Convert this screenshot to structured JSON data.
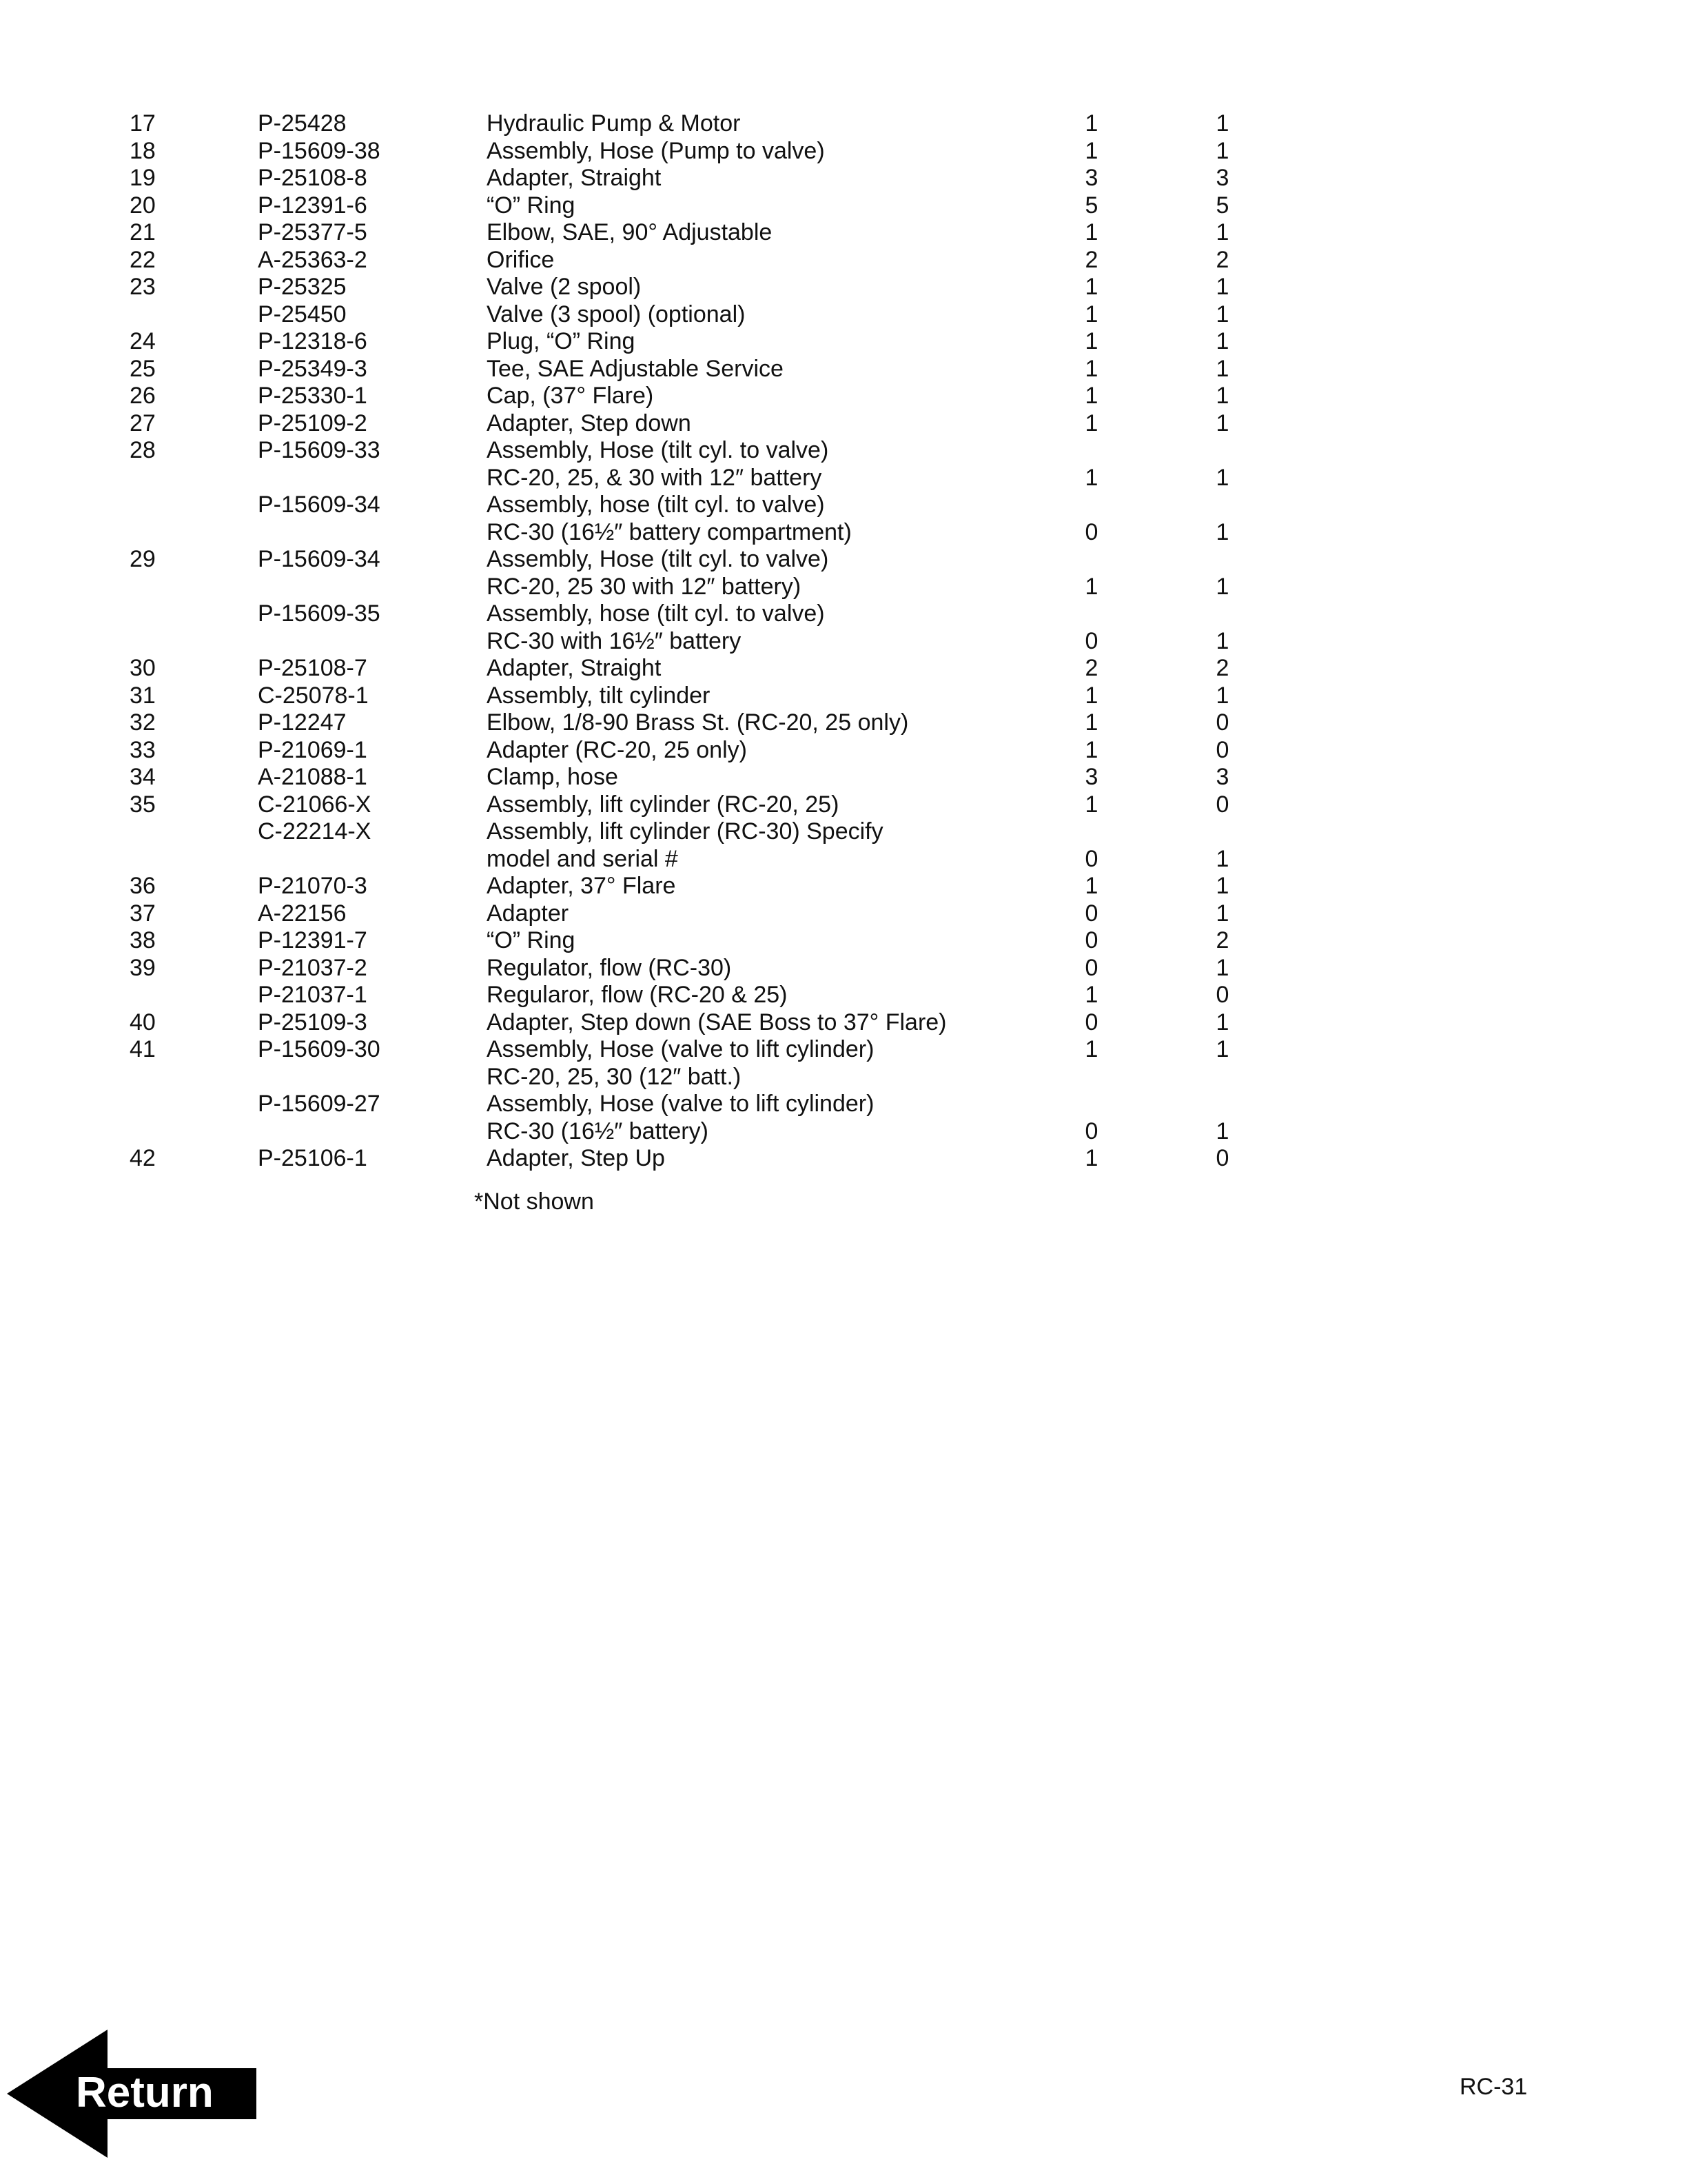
{
  "rows": [
    {
      "num": "17",
      "part": "P-25428",
      "desc": "Hydraulic Pump & Motor",
      "q1": "1",
      "q2": "1"
    },
    {
      "num": "18",
      "part": "P-15609-38",
      "desc": "Assembly, Hose (Pump to valve)",
      "q1": "1",
      "q2": "1"
    },
    {
      "num": "19",
      "part": "P-25108-8",
      "desc": "Adapter, Straight",
      "q1": "3",
      "q2": "3"
    },
    {
      "num": "20",
      "part": "P-12391-6",
      "desc": "“O” Ring",
      "q1": "5",
      "q2": "5"
    },
    {
      "num": "21",
      "part": "P-25377-5",
      "desc": "Elbow, SAE, 90° Adjustable",
      "q1": "1",
      "q2": "1"
    },
    {
      "num": "22",
      "part": "A-25363-2",
      "desc": "Orifice",
      "q1": "2",
      "q2": "2"
    },
    {
      "num": "23",
      "part": "P-25325",
      "desc": "Valve (2 spool)",
      "q1": "1",
      "q2": "1"
    },
    {
      "num": "",
      "part": "P-25450",
      "desc": "Valve (3 spool) (optional)",
      "q1": "1",
      "q2": "1"
    },
    {
      "num": "24",
      "part": "P-12318-6",
      "desc": "Plug, “O” Ring",
      "q1": "1",
      "q2": "1"
    },
    {
      "num": "25",
      "part": "P-25349-3",
      "desc": "Tee, SAE Adjustable Service",
      "q1": "1",
      "q2": "1"
    },
    {
      "num": "26",
      "part": "P-25330-1",
      "desc": "Cap, (37° Flare)",
      "q1": "1",
      "q2": "1"
    },
    {
      "num": "27",
      "part": "P-25109-2",
      "desc": "Adapter, Step down",
      "q1": "1",
      "q2": "1"
    },
    {
      "num": "28",
      "part": "P-15609-33",
      "desc": "Assembly, Hose (tilt cyl. to valve)",
      "q1": "",
      "q2": ""
    },
    {
      "num": "",
      "part": "",
      "desc": "RC-20, 25, & 30 with 12″ battery",
      "q1": "1",
      "q2": "1"
    },
    {
      "num": "",
      "part": "P-15609-34",
      "desc": "Assembly, hose (tilt cyl. to valve)",
      "q1": "",
      "q2": ""
    },
    {
      "num": "",
      "part": "",
      "desc": "RC-30 (16½″ battery compartment)",
      "q1": "0",
      "q2": "1"
    },
    {
      "num": "29",
      "part": "P-15609-34",
      "desc": "Assembly, Hose (tilt cyl. to valve)",
      "q1": "",
      "q2": ""
    },
    {
      "num": "",
      "part": "",
      "desc": "RC-20, 25 30 with 12″ battery)",
      "q1": "1",
      "q2": "1"
    },
    {
      "num": "",
      "part": "P-15609-35",
      "desc": "Assembly, hose (tilt cyl. to valve)",
      "q1": "",
      "q2": ""
    },
    {
      "num": "",
      "part": "",
      "desc": "RC-30 with 16½″ battery",
      "q1": "0",
      "q2": "1"
    },
    {
      "num": "30",
      "part": "P-25108-7",
      "desc": "Adapter, Straight",
      "q1": "2",
      "q2": "2"
    },
    {
      "num": "31",
      "part": "C-25078-1",
      "desc": "Assembly, tilt cylinder",
      "q1": "1",
      "q2": "1"
    },
    {
      "num": "32",
      "part": "P-12247",
      "desc": "Elbow, 1/8-90 Brass St. (RC-20, 25 only)",
      "q1": "1",
      "q2": "0"
    },
    {
      "num": "33",
      "part": "P-21069-1",
      "desc": "Adapter (RC-20, 25 only)",
      "q1": "1",
      "q2": "0"
    },
    {
      "num": "34",
      "part": "A-21088-1",
      "desc": "Clamp, hose",
      "q1": "3",
      "q2": "3"
    },
    {
      "num": "35",
      "part": "C-21066-X",
      "desc": "Assembly, lift cylinder (RC-20, 25)",
      "q1": "1",
      "q2": "0"
    },
    {
      "num": "",
      "part": "C-22214-X",
      "desc": "Assembly, lift cylinder (RC-30) Specify",
      "q1": "",
      "q2": ""
    },
    {
      "num": "",
      "part": "",
      "desc": "model and serial #",
      "q1": "0",
      "q2": "1"
    },
    {
      "num": "36",
      "part": "P-21070-3",
      "desc": "Adapter, 37° Flare",
      "q1": "1",
      "q2": "1"
    },
    {
      "num": "37",
      "part": "A-22156",
      "desc": "Adapter",
      "q1": "0",
      "q2": "1"
    },
    {
      "num": "38",
      "part": "P-12391-7",
      "desc": "“O” Ring",
      "q1": "0",
      "q2": "2"
    },
    {
      "num": "39",
      "part": "P-21037-2",
      "desc": "Regulator, flow (RC-30)",
      "q1": "0",
      "q2": "1"
    },
    {
      "num": "",
      "part": "P-21037-1",
      "desc": "Regularor, flow (RC-20 & 25)",
      "q1": "1",
      "q2": "0"
    },
    {
      "num": "40",
      "part": "P-25109-3",
      "desc": "Adapter, Step down (SAE Boss to 37° Flare)",
      "q1": "0",
      "q2": "1"
    },
    {
      "num": "41",
      "part": "P-15609-30",
      "desc": "Assembly, Hose (valve to lift cylinder)",
      "q1": "1",
      "q2": "1"
    },
    {
      "num": "",
      "part": "",
      "desc": "RC-20, 25, 30 (12″ batt.)",
      "q1": "",
      "q2": ""
    },
    {
      "num": "",
      "part": "P-15609-27",
      "desc": "Assembly, Hose (valve to lift cylinder)",
      "q1": "",
      "q2": ""
    },
    {
      "num": "",
      "part": "",
      "desc": "RC-30 (16½″ battery)",
      "q1": "0",
      "q2": "1"
    },
    {
      "num": "42",
      "part": "P-25106-1",
      "desc": "Adapter, Step Up",
      "q1": "1",
      "q2": "0"
    }
  ],
  "footnote": "*Not shown",
  "return_button": {
    "label": "Return",
    "icon": "left-arrow-icon"
  },
  "page_number": "RC-31"
}
